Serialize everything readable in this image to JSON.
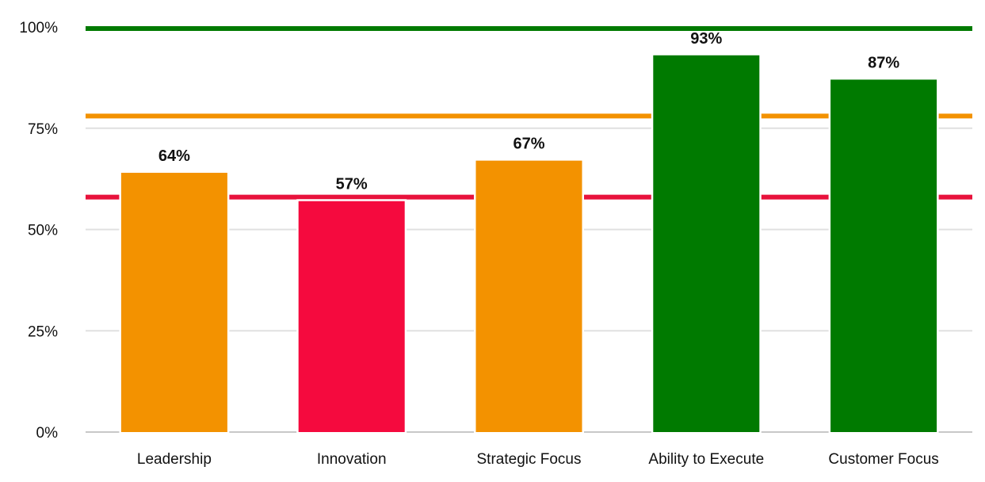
{
  "chart_data": {
    "type": "bar",
    "categories": [
      "Leadership",
      "Innovation",
      "Strategic Focus",
      "Ability to Execute",
      "Customer Focus"
    ],
    "values": [
      64,
      57,
      67,
      93,
      87
    ],
    "data_labels": [
      "64%",
      "57%",
      "67%",
      "93%",
      "87%"
    ],
    "bar_colors": [
      "#F39200",
      "#F50A3E",
      "#F39200",
      "#007A00",
      "#007A00"
    ],
    "ylim": [
      0,
      100
    ],
    "yticks": [
      0,
      25,
      50,
      75,
      100
    ],
    "ytick_labels": [
      "0%",
      "25%",
      "50%",
      "75%",
      "100%"
    ],
    "grid": true,
    "reference_lines": [
      {
        "value": 100,
        "color": "#007A00"
      },
      {
        "value": 78,
        "color": "#F39200"
      },
      {
        "value": 58,
        "color": "#E8123C"
      }
    ],
    "title": "",
    "xlabel": "",
    "ylabel": ""
  }
}
